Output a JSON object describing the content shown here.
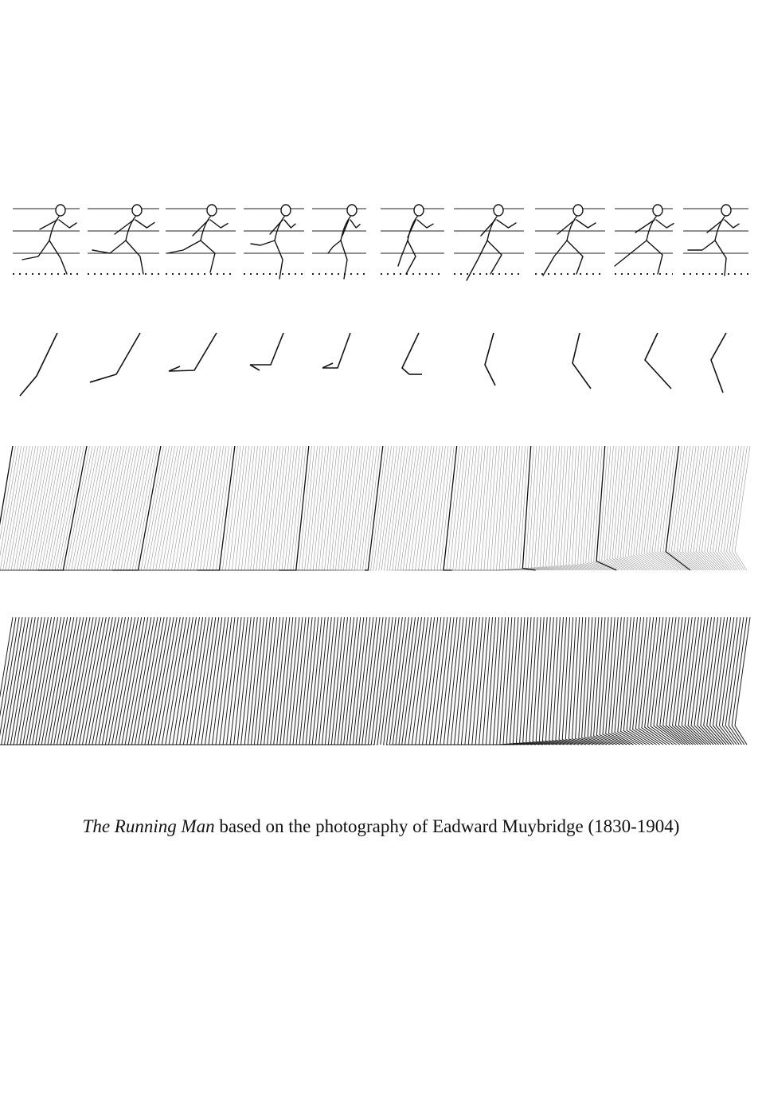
{
  "figure": {
    "frame_count": 10,
    "ink_color": "#111111",
    "guide_color": "#222222"
  },
  "caption": {
    "title": "The Running Man",
    "text": " based on the photography of Eadward Muybridge (1830-1904)"
  }
}
